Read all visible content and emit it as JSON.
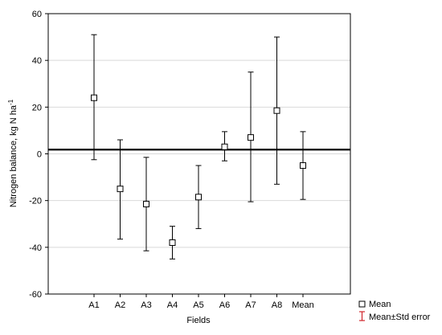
{
  "chart_data": {
    "type": "scatter",
    "title": "",
    "xlabel": "Fields",
    "ylabel": "Nitrogen balance, kg N ha",
    "ylabel_superscript": "-1",
    "ylim": [
      -60,
      60
    ],
    "yticks": [
      -60,
      -40,
      -20,
      0,
      20,
      40,
      60
    ],
    "grid": true,
    "categories": [
      "A1",
      "A2",
      "A3",
      "A4",
      "A5",
      "A6",
      "A7",
      "A8",
      "Mean"
    ],
    "means": [
      24,
      -15,
      -21.5,
      -38,
      -18.5,
      3,
      7,
      18.5,
      -5
    ],
    "upper": [
      51,
      6,
      -1.5,
      -31,
      -5,
      9.5,
      35,
      50,
      9.5
    ],
    "lower": [
      -2.5,
      -36.5,
      -41.5,
      -45,
      -32,
      -3,
      -20.5,
      -13,
      -19.5
    ],
    "reference_line": 1.8,
    "legend": {
      "position": "bottom-right",
      "mean_label": "Mean",
      "error_label": "Mean±Std error",
      "error_color": "#d0242a"
    }
  }
}
